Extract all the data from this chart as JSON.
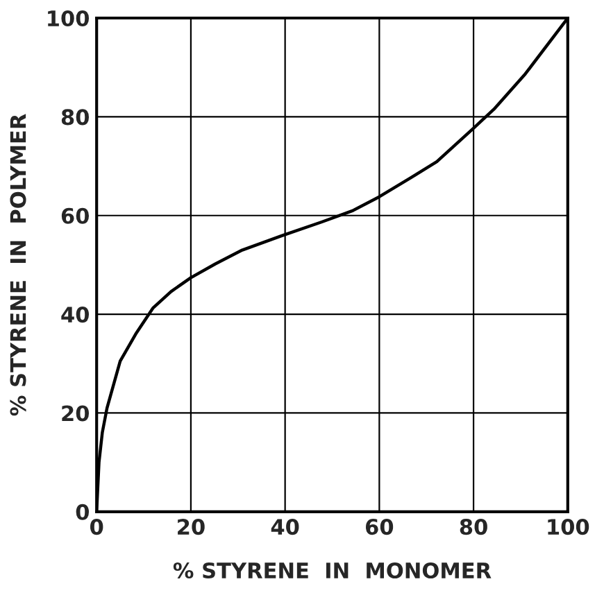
{
  "chart_data": {
    "type": "line",
    "xlabel": "% STYRENE  IN  MONOMER",
    "ylabel": "% STYRENE  IN  POLYMER",
    "x": [
      0,
      0.5,
      1.2,
      2.2,
      5,
      8.3,
      12,
      15.8,
      20,
      25.2,
      30.9,
      39.3,
      47.8,
      54.4,
      60,
      66.6,
      72.2,
      79.8,
      84.5,
      91,
      100
    ],
    "series": [
      {
        "color": "#000000",
        "values": [
          0,
          10,
          16,
          21,
          30.5,
          36,
          41.3,
          44.6,
          47.4,
          50.2,
          53,
          55.9,
          58.7,
          61,
          63.8,
          67.6,
          70.9,
          77.5,
          81.7,
          88.7,
          100
        ]
      }
    ],
    "xlim": [
      0,
      100
    ],
    "ylim": [
      0,
      100
    ],
    "xticks": [
      0,
      20,
      40,
      60,
      80,
      100
    ],
    "yticks": [
      0,
      20,
      40,
      60,
      80,
      100
    ],
    "grid": true,
    "marker": "none",
    "line_style": "solid"
  }
}
